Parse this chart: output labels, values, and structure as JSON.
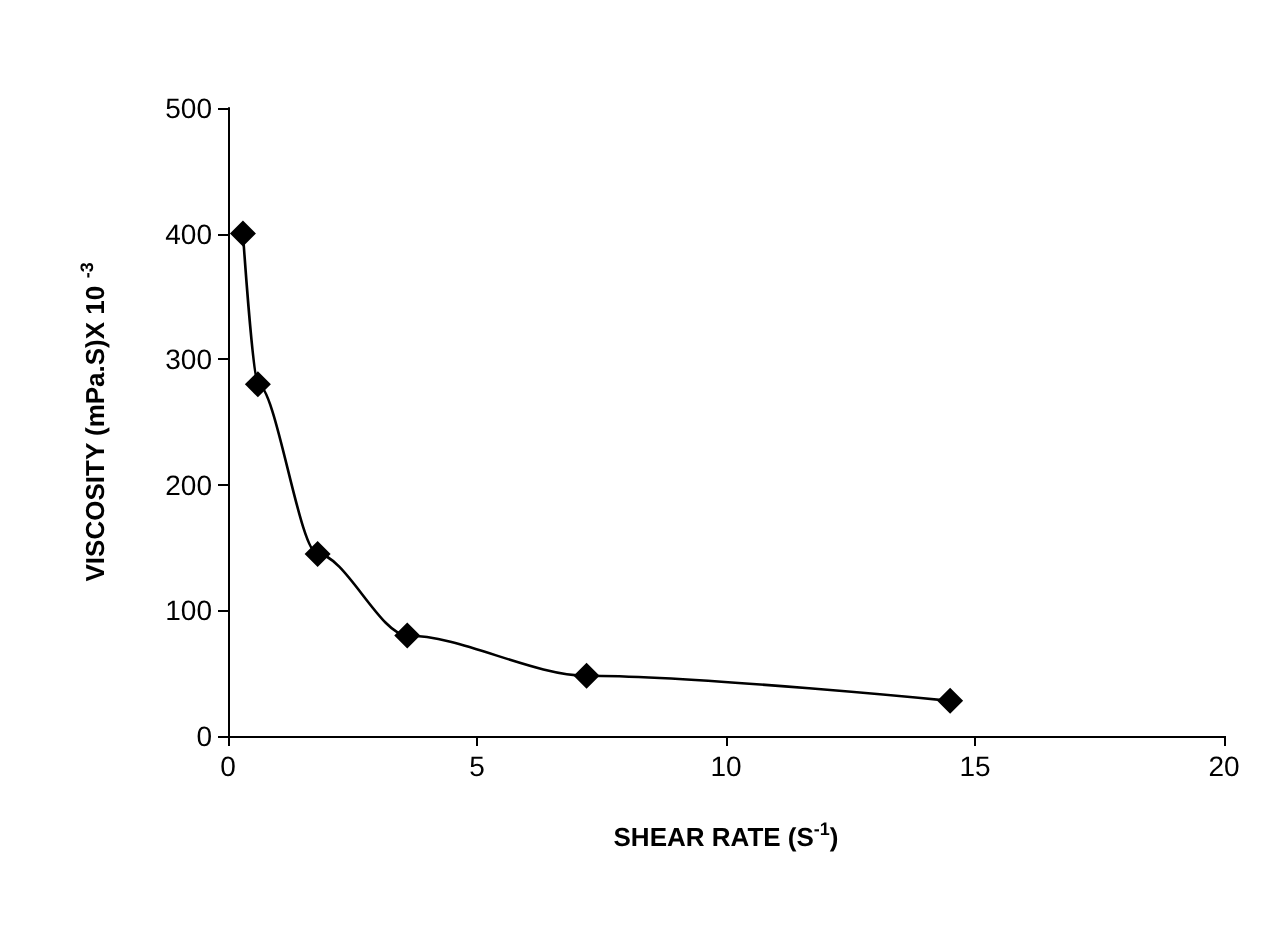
{
  "chart_data": {
    "type": "line",
    "xlabel": "SHEAR RATE (S$^{-1}$)",
    "ylabel": "VISCOSITY (mPa.S)X 10 $^{-3}$",
    "series": [
      {
        "color": "#000000",
        "x": [
          0.3,
          0.6,
          1.8,
          3.6,
          7.2,
          14.5
        ],
        "values": [
          400,
          280,
          145,
          80,
          48,
          28
        ]
      }
    ],
    "xlim": [
      0,
      20
    ],
    "xticks": [
      0,
      5,
      10,
      15,
      20
    ],
    "ylim": [
      0,
      500
    ],
    "yticks": [
      0,
      100,
      200,
      300,
      400,
      500
    ],
    "grid": false,
    "marker": "diamond",
    "line_style": "solid"
  }
}
